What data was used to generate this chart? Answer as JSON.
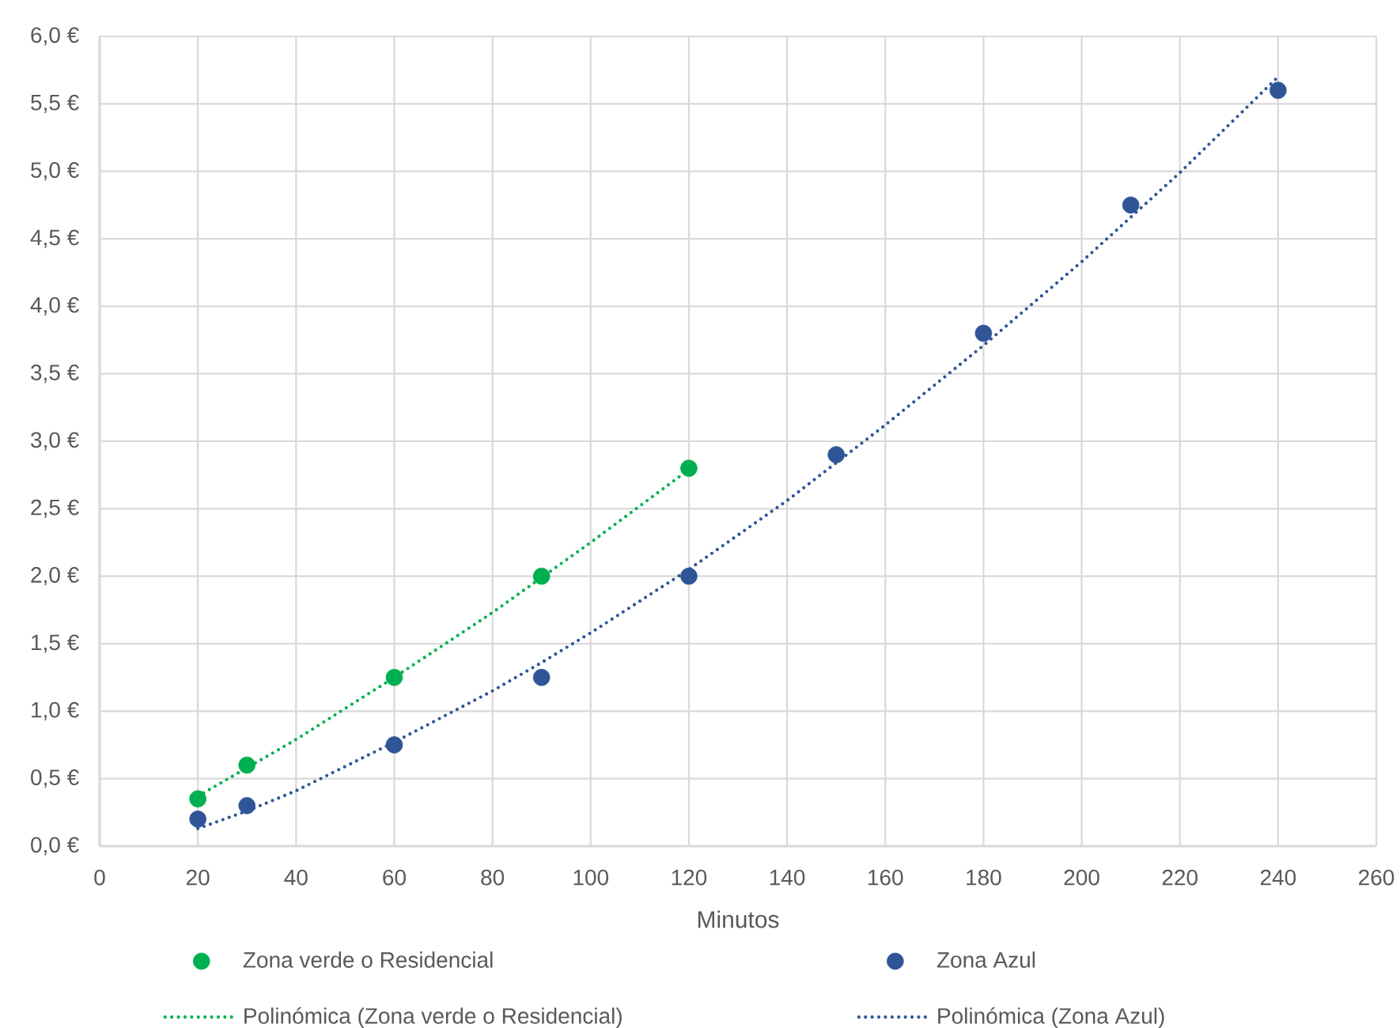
{
  "chart_data": {
    "type": "scatter",
    "xlabel": "Minutos",
    "xlim": [
      0,
      260
    ],
    "xticks": [
      0,
      20,
      40,
      60,
      80,
      100,
      120,
      140,
      160,
      180,
      200,
      220,
      240,
      260
    ],
    "ylim": [
      0,
      6
    ],
    "yticks": [
      {
        "value": 0,
        "label": "0,0 €"
      },
      {
        "value": 0.5,
        "label": "0,5 €"
      },
      {
        "value": 1,
        "label": "1,0 €"
      },
      {
        "value": 1.5,
        "label": "1,5 €"
      },
      {
        "value": 2,
        "label": "2,0 €"
      },
      {
        "value": 2.5,
        "label": "2,5 €"
      },
      {
        "value": 3,
        "label": "3,0 €"
      },
      {
        "value": 3.5,
        "label": "3,5 €"
      },
      {
        "value": 4,
        "label": "4,0 €"
      },
      {
        "value": 4.5,
        "label": "4,5 €"
      },
      {
        "value": 5,
        "label": "5,0 €"
      },
      {
        "value": 5.5,
        "label": "5,5 €"
      },
      {
        "value": 6,
        "label": "6,0 €"
      }
    ],
    "grid": true,
    "legend": "bottom",
    "marker": "circle",
    "series": [
      {
        "name": "Zona verde o Residencial",
        "color": "#00b050",
        "x": [
          20,
          30,
          60,
          90,
          120
        ],
        "values": [
          0.35,
          0.6,
          1.25,
          2.0,
          2.8
        ]
      },
      {
        "name": "Zona Azul",
        "color": "#2f5597",
        "x": [
          20,
          30,
          60,
          90,
          120,
          150,
          180,
          210,
          240
        ],
        "values": [
          0.2,
          0.3,
          0.75,
          1.25,
          2.0,
          2.9,
          3.8,
          4.75,
          5.6
        ]
      },
      {
        "name": "Polinómica (Zona verde o Residencial)",
        "type": "line",
        "marker": "none",
        "line_style": "dotted",
        "color": "#00b050",
        "x": [
          20,
          40,
          60,
          80,
          100,
          120
        ],
        "values": [
          0.37,
          0.79,
          1.25,
          1.73,
          2.25,
          2.79
        ]
      },
      {
        "name": "Polinómica (Zona Azul)",
        "type": "line",
        "marker": "none",
        "line_style": "dotted",
        "color": "#2f5597",
        "x": [
          20,
          30,
          40,
          60,
          80,
          90,
          100,
          120,
          140,
          160,
          180,
          200,
          220,
          240
        ],
        "values": [
          0.13,
          0.26,
          0.41,
          0.77,
          1.15,
          1.36,
          1.58,
          2.05,
          2.56,
          3.12,
          3.71,
          4.33,
          4.99,
          5.7
        ]
      }
    ]
  }
}
